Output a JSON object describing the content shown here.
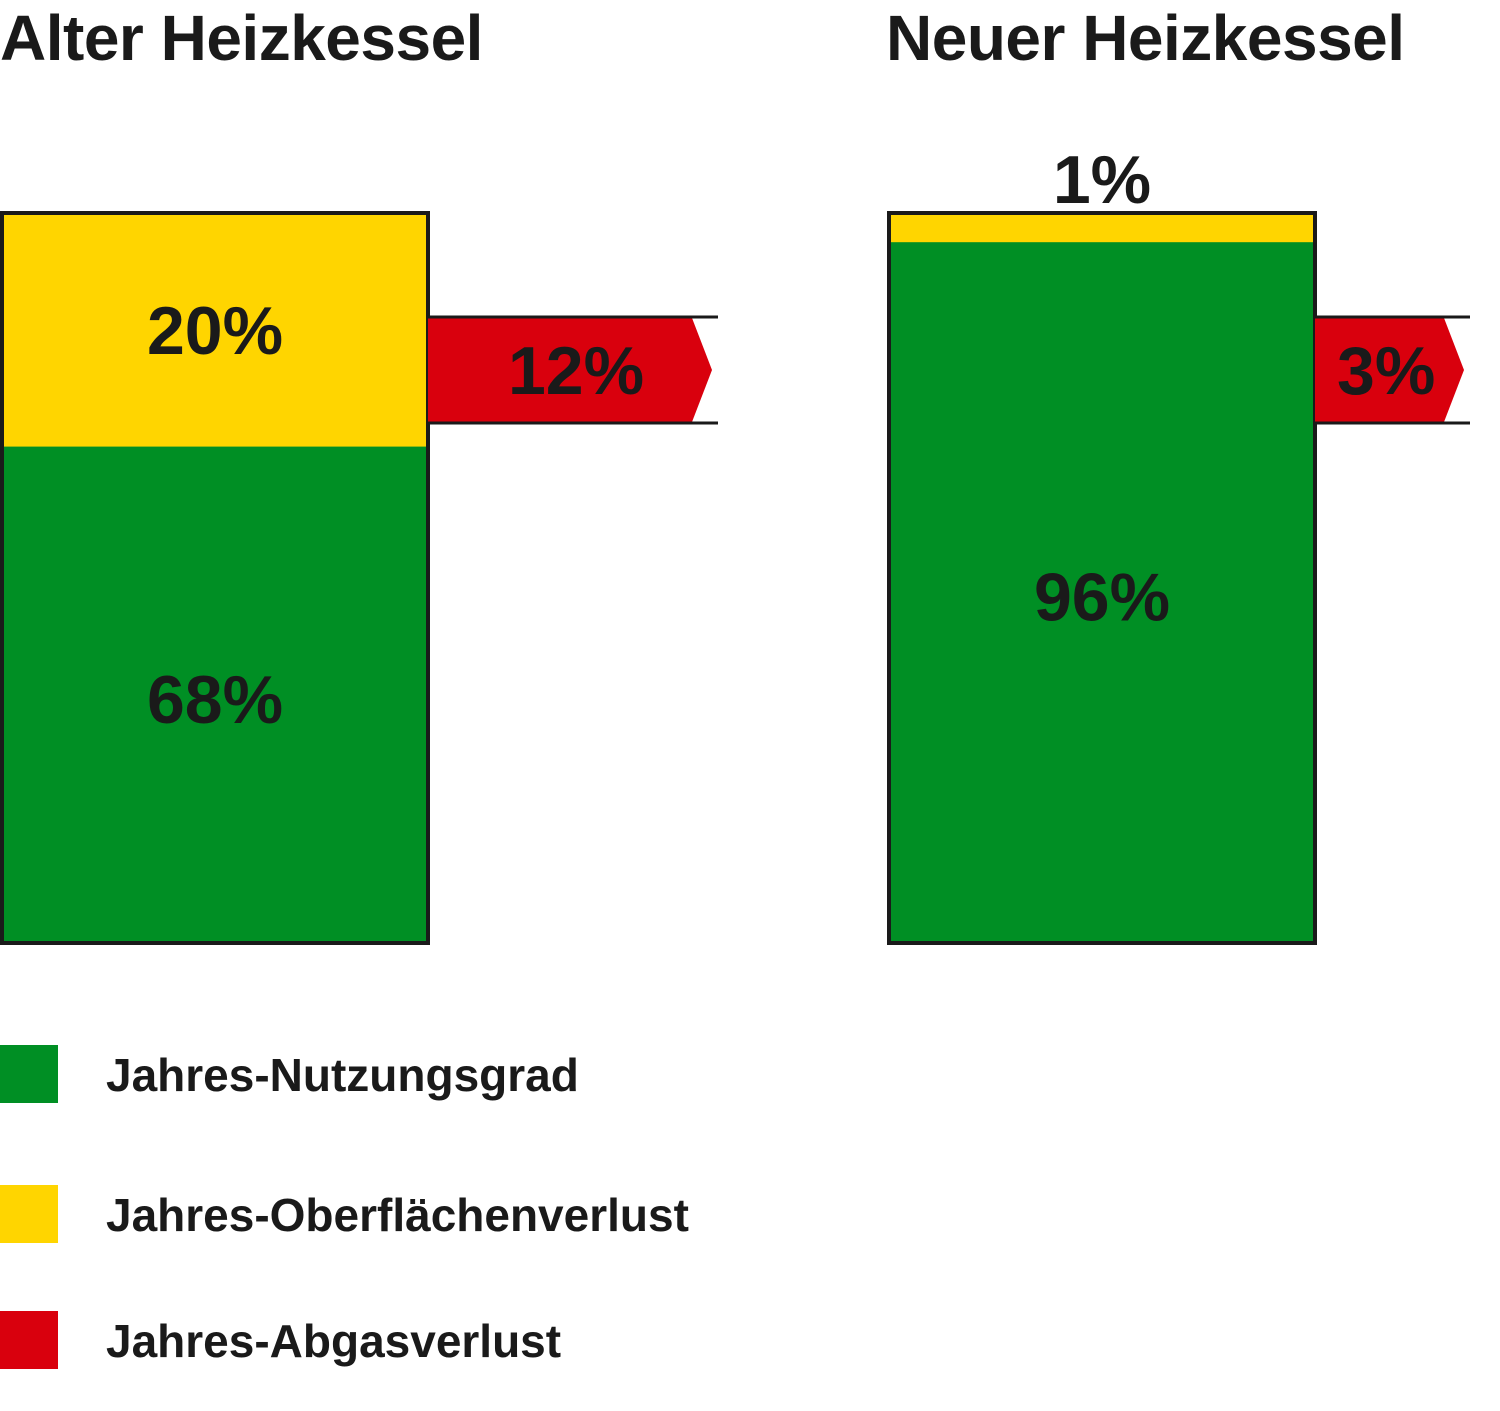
{
  "chart_data": {
    "type": "bar",
    "stacked": true,
    "unit": "%",
    "colors": {
      "Jahres-Nutzungsgrad": "#008f24",
      "Jahres-Oberflächenverlust": "#ffd500",
      "Jahres-Abgasverlust": "#d9000d"
    },
    "panels": [
      {
        "title": "Alter Heizkessel",
        "segments": [
          {
            "series": "Jahres-Nutzungsgrad",
            "value": 68,
            "label": "68%"
          },
          {
            "series": "Jahres-Oberflächenverlust",
            "value": 20,
            "label": "20%"
          }
        ],
        "exhaust": {
          "series": "Jahres-Abgasverlust",
          "value": 12,
          "label": "12%"
        }
      },
      {
        "title": "Neuer Heizkessel",
        "segments": [
          {
            "series": "Jahres-Nutzungsgrad",
            "value": 96,
            "label": "96%"
          },
          {
            "series": "Jahres-Oberflächenverlust",
            "value": 1,
            "label": "1%"
          }
        ],
        "exhaust": {
          "series": "Jahres-Abgasverlust",
          "value": 3,
          "label": "3%"
        }
      }
    ],
    "legend": [
      {
        "label": "Jahres-Nutzungsgrad",
        "color": "#008f24"
      },
      {
        "label": "Jahres-Oberflächenverlust",
        "color": "#ffd500"
      },
      {
        "label": "Jahres-Abgasverlust",
        "color": "#d9000d"
      }
    ],
    "legend_position": "bottom-left"
  }
}
